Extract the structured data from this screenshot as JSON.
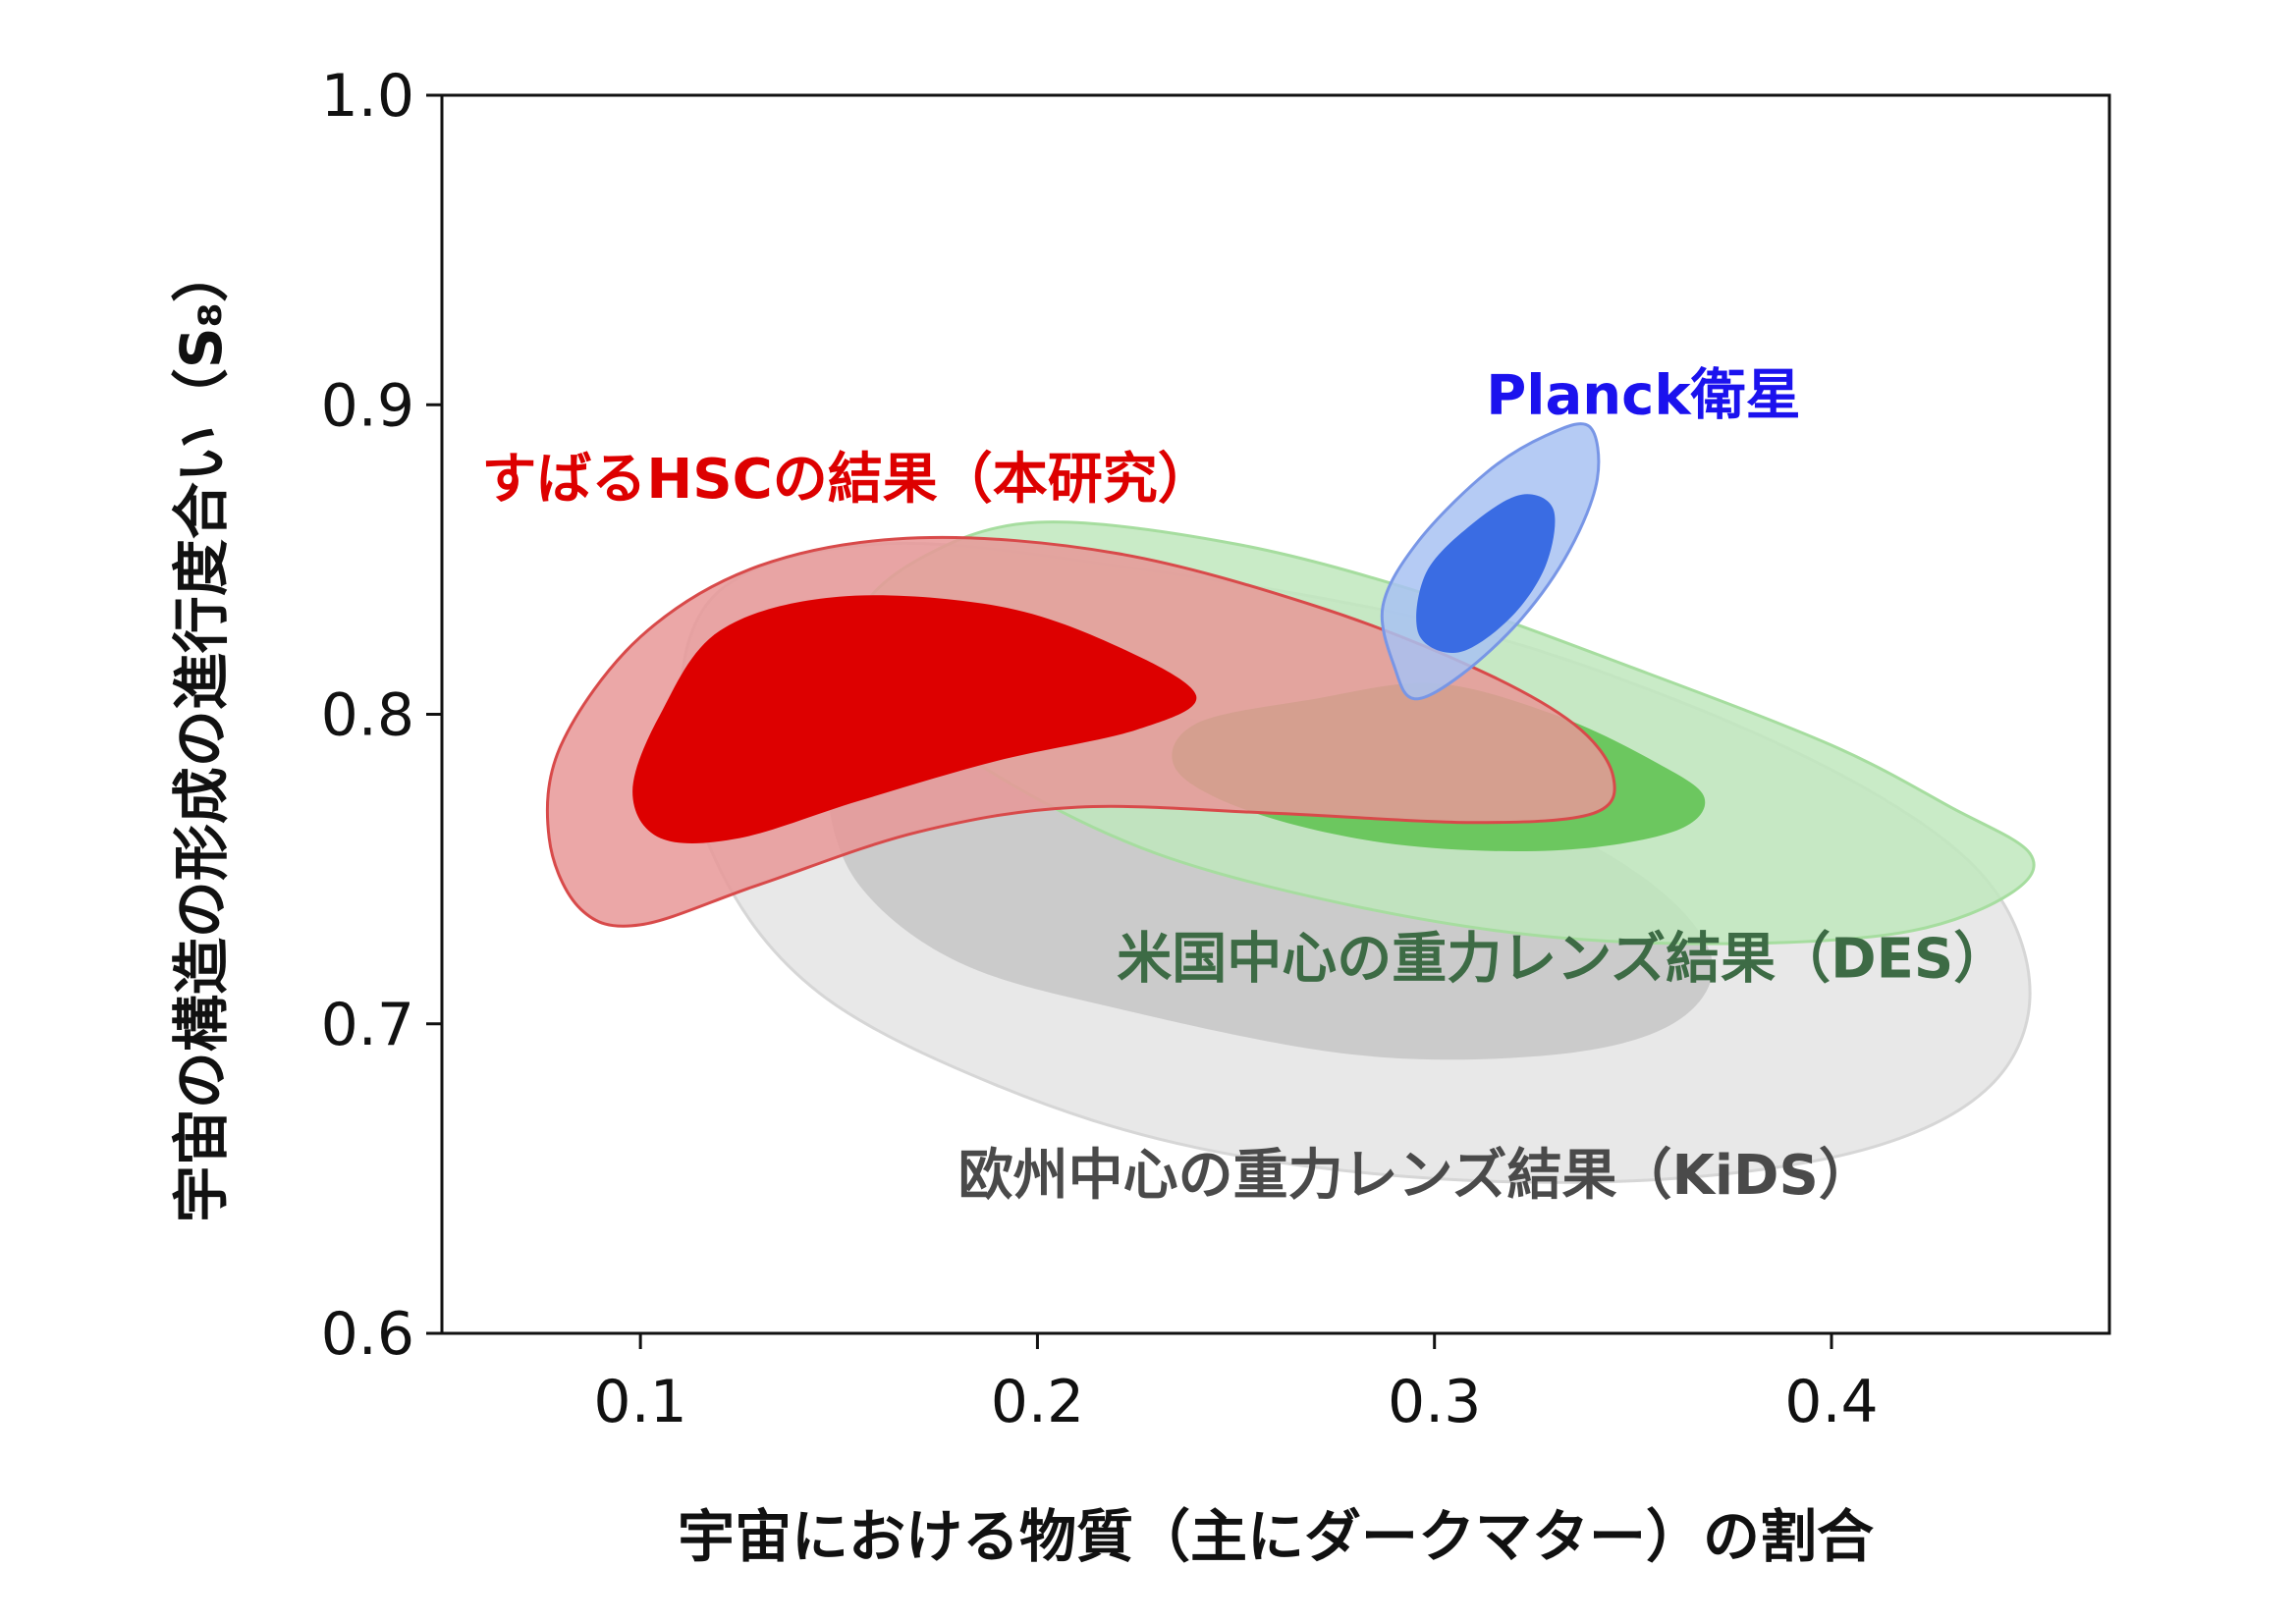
{
  "chart_data": {
    "type": "contour",
    "xlabel": "宇宙における物質（主にダークマター）の割合",
    "ylabel": "宇宙の構造の形成の進行度合い（S₈）",
    "xlim": [
      0.05,
      0.47
    ],
    "ylim": [
      0.6,
      1.0
    ],
    "xticks": [
      "0.1",
      "0.2",
      "0.3",
      "0.4"
    ],
    "yticks": [
      "0.6",
      "0.7",
      "0.8",
      "0.9",
      "1.0"
    ],
    "grid": false,
    "series": [
      {
        "name": "欧州中心の重力レンズ結果（KiDS）",
        "key": "kids",
        "fill_outer": "#e8e8e8",
        "fill_inner": "#c8c8c8",
        "stroke": "#d6d6d6",
        "label_color": "#4a4a4a",
        "label_at": [
          0.18,
          0.645
        ],
        "outer": [
          [
            0.12,
            0.84
          ],
          [
            0.16,
            0.855
          ],
          [
            0.22,
            0.848
          ],
          [
            0.3,
            0.83
          ],
          [
            0.36,
            0.805
          ],
          [
            0.41,
            0.775
          ],
          [
            0.44,
            0.745
          ],
          [
            0.45,
            0.71
          ],
          [
            0.44,
            0.68
          ],
          [
            0.41,
            0.66
          ],
          [
            0.36,
            0.65
          ],
          [
            0.3,
            0.65
          ],
          [
            0.24,
            0.66
          ],
          [
            0.19,
            0.68
          ],
          [
            0.145,
            0.71
          ],
          [
            0.12,
            0.75
          ],
          [
            0.11,
            0.8
          ]
        ],
        "inner": [
          [
            0.15,
            0.8
          ],
          [
            0.17,
            0.81
          ],
          [
            0.21,
            0.805
          ],
          [
            0.27,
            0.79
          ],
          [
            0.32,
            0.77
          ],
          [
            0.355,
            0.745
          ],
          [
            0.37,
            0.72
          ],
          [
            0.36,
            0.7
          ],
          [
            0.33,
            0.69
          ],
          [
            0.28,
            0.69
          ],
          [
            0.22,
            0.705
          ],
          [
            0.18,
            0.72
          ],
          [
            0.155,
            0.745
          ],
          [
            0.147,
            0.775
          ]
        ]
      },
      {
        "name": "米国中心の重力レンズ結果（DES）",
        "key": "des",
        "fill_outer": "#bfe8bd",
        "fill_inner": "#6cc75f",
        "stroke": "#a6dd9f",
        "label_color": "#3d6b45",
        "label_at": [
          0.22,
          0.715
        ],
        "outer": [
          [
            0.155,
            0.83
          ],
          [
            0.17,
            0.85
          ],
          [
            0.2,
            0.862
          ],
          [
            0.25,
            0.855
          ],
          [
            0.3,
            0.838
          ],
          [
            0.35,
            0.815
          ],
          [
            0.4,
            0.79
          ],
          [
            0.43,
            0.77
          ],
          [
            0.45,
            0.755
          ],
          [
            0.445,
            0.742
          ],
          [
            0.42,
            0.73
          ],
          [
            0.38,
            0.726
          ],
          [
            0.33,
            0.728
          ],
          [
            0.28,
            0.738
          ],
          [
            0.23,
            0.755
          ],
          [
            0.19,
            0.78
          ],
          [
            0.165,
            0.805
          ]
        ],
        "inner": [
          [
            0.27,
            0.805
          ],
          [
            0.3,
            0.81
          ],
          [
            0.33,
            0.8
          ],
          [
            0.355,
            0.785
          ],
          [
            0.368,
            0.773
          ],
          [
            0.36,
            0.762
          ],
          [
            0.33,
            0.756
          ],
          [
            0.29,
            0.758
          ],
          [
            0.255,
            0.768
          ],
          [
            0.235,
            0.782
          ],
          [
            0.24,
            0.797
          ]
        ]
      },
      {
        "name": "すばるHSCの結果（本研究）",
        "key": "hsc",
        "fill_outer": "#e89898",
        "fill_inner": "#dd0000",
        "stroke": "#d84a4a",
        "label_color": "#dd0000",
        "label_at": [
          0.06,
          0.87
        ],
        "outer": [
          [
            0.08,
            0.79
          ],
          [
            0.1,
            0.825
          ],
          [
            0.13,
            0.848
          ],
          [
            0.17,
            0.857
          ],
          [
            0.22,
            0.852
          ],
          [
            0.27,
            0.835
          ],
          [
            0.31,
            0.815
          ],
          [
            0.335,
            0.797
          ],
          [
            0.345,
            0.78
          ],
          [
            0.34,
            0.768
          ],
          [
            0.31,
            0.765
          ],
          [
            0.26,
            0.768
          ],
          [
            0.21,
            0.77
          ],
          [
            0.17,
            0.762
          ],
          [
            0.13,
            0.745
          ],
          [
            0.1,
            0.732
          ],
          [
            0.085,
            0.737
          ],
          [
            0.077,
            0.76
          ]
        ],
        "inner": [
          [
            0.105,
            0.8
          ],
          [
            0.12,
            0.827
          ],
          [
            0.15,
            0.838
          ],
          [
            0.19,
            0.835
          ],
          [
            0.22,
            0.822
          ],
          [
            0.24,
            0.806
          ],
          [
            0.225,
            0.795
          ],
          [
            0.19,
            0.785
          ],
          [
            0.155,
            0.772
          ],
          [
            0.125,
            0.76
          ],
          [
            0.105,
            0.76
          ],
          [
            0.098,
            0.775
          ]
        ]
      },
      {
        "name": "Planck衛星",
        "key": "planck",
        "fill_outer": "#a8c2f2",
        "fill_inner": "#3a6ce3",
        "stroke": "#7896e6",
        "label_color": "#1b12ee",
        "label_at": [
          0.313,
          0.897
        ],
        "outer": [
          [
            0.29,
            0.815
          ],
          [
            0.287,
            0.835
          ],
          [
            0.296,
            0.856
          ],
          [
            0.313,
            0.878
          ],
          [
            0.328,
            0.89
          ],
          [
            0.339,
            0.893
          ],
          [
            0.341,
            0.876
          ],
          [
            0.334,
            0.853
          ],
          [
            0.322,
            0.831
          ],
          [
            0.307,
            0.813
          ],
          [
            0.295,
            0.805
          ]
        ],
        "inner": [
          [
            0.296,
            0.826
          ],
          [
            0.298,
            0.846
          ],
          [
            0.31,
            0.862
          ],
          [
            0.322,
            0.871
          ],
          [
            0.33,
            0.866
          ],
          [
            0.328,
            0.848
          ],
          [
            0.319,
            0.831
          ],
          [
            0.306,
            0.82
          ]
        ]
      }
    ]
  }
}
